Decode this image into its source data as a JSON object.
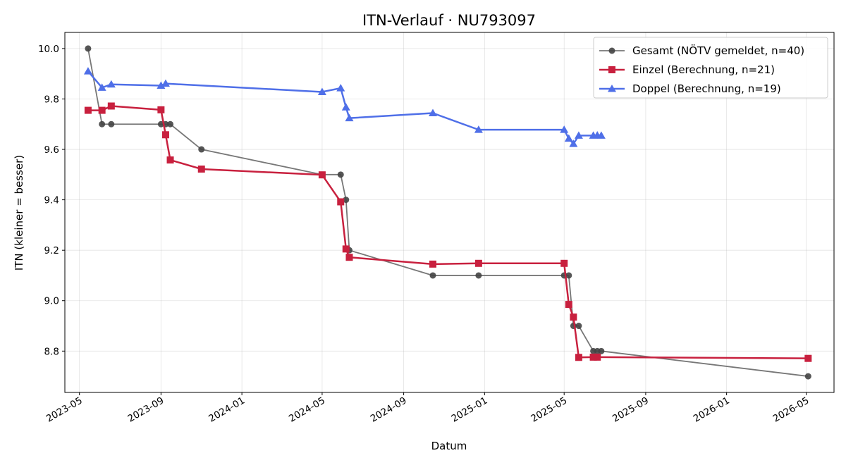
{
  "chart_data": {
    "type": "line",
    "title": "ITN-Verlauf · NU793097",
    "xlabel": "Datum",
    "ylabel": "ITN  (kleiner = besser)",
    "xlim": [
      "2023-04-09",
      "2026-06-12"
    ],
    "ylim": [
      8.636,
      10.064
    ],
    "x_ticks": [
      "2023-05",
      "2023-09",
      "2024-01",
      "2024-05",
      "2024-09",
      "2025-01",
      "2025-05",
      "2025-09",
      "2026-01",
      "2026-05"
    ],
    "y_ticks": [
      8.8,
      9.0,
      9.2,
      9.4,
      9.6,
      9.8,
      10.0
    ],
    "grid": true,
    "legend_position": "top-right",
    "series": [
      {
        "name": "Gesamt (NÖTV gemeldet, n=40)",
        "color": "#444444",
        "marker": "circle",
        "points": [
          {
            "x": "2023-05-14",
            "y": 10.0
          },
          {
            "x": "2023-06-04",
            "y": 9.7
          },
          {
            "x": "2023-06-18",
            "y": 9.7
          },
          {
            "x": "2023-09-01",
            "y": 9.7
          },
          {
            "x": "2023-09-08",
            "y": 9.7
          },
          {
            "x": "2023-09-15",
            "y": 9.7
          },
          {
            "x": "2023-11-01",
            "y": 9.6
          },
          {
            "x": "2024-05-01",
            "y": 9.5
          },
          {
            "x": "2024-05-29",
            "y": 9.5
          },
          {
            "x": "2024-06-06",
            "y": 9.4
          },
          {
            "x": "2024-06-11",
            "y": 9.2
          },
          {
            "x": "2024-10-15",
            "y": 9.1
          },
          {
            "x": "2024-12-23",
            "y": 9.1
          },
          {
            "x": "2025-05-01",
            "y": 9.1
          },
          {
            "x": "2025-05-08",
            "y": 9.1
          },
          {
            "x": "2025-05-15",
            "y": 8.9
          },
          {
            "x": "2025-05-23",
            "y": 8.9
          },
          {
            "x": "2025-06-14",
            "y": 8.8
          },
          {
            "x": "2025-06-20",
            "y": 8.8
          },
          {
            "x": "2025-06-26",
            "y": 8.8
          },
          {
            "x": "2026-05-04",
            "y": 8.7
          }
        ]
      },
      {
        "name": "Einzel (Berechnung, n=21)",
        "color": "#c8203e",
        "marker": "square",
        "points": [
          {
            "x": "2023-05-14",
            "y": 9.755
          },
          {
            "x": "2023-06-04",
            "y": 9.755
          },
          {
            "x": "2023-06-18",
            "y": 9.772
          },
          {
            "x": "2023-09-01",
            "y": 9.757
          },
          {
            "x": "2023-09-08",
            "y": 9.658
          },
          {
            "x": "2023-09-15",
            "y": 9.558
          },
          {
            "x": "2023-11-01",
            "y": 9.522
          },
          {
            "x": "2024-05-01",
            "y": 9.499
          },
          {
            "x": "2024-05-29",
            "y": 9.392
          },
          {
            "x": "2024-06-06",
            "y": 9.205
          },
          {
            "x": "2024-06-11",
            "y": 9.172
          },
          {
            "x": "2024-10-15",
            "y": 9.145
          },
          {
            "x": "2024-12-23",
            "y": 9.148
          },
          {
            "x": "2025-05-01",
            "y": 9.148
          },
          {
            "x": "2025-05-08",
            "y": 8.985
          },
          {
            "x": "2025-05-15",
            "y": 8.935
          },
          {
            "x": "2025-05-23",
            "y": 8.775
          },
          {
            "x": "2025-06-14",
            "y": 8.776
          },
          {
            "x": "2025-06-20",
            "y": 8.776
          },
          {
            "x": "2026-05-04",
            "y": 8.771
          }
        ]
      },
      {
        "name": "Doppel (Berechnung, n=19)",
        "color": "#4f6fe8",
        "marker": "triangle",
        "points": [
          {
            "x": "2023-05-14",
            "y": 9.91
          },
          {
            "x": "2023-06-04",
            "y": 9.845
          },
          {
            "x": "2023-06-18",
            "y": 9.858
          },
          {
            "x": "2023-09-01",
            "y": 9.853
          },
          {
            "x": "2023-09-08",
            "y": 9.861
          },
          {
            "x": "2024-05-01",
            "y": 9.828
          },
          {
            "x": "2024-05-29",
            "y": 9.843
          },
          {
            "x": "2024-06-06",
            "y": 9.767
          },
          {
            "x": "2024-06-11",
            "y": 9.724
          },
          {
            "x": "2024-10-15",
            "y": 9.744
          },
          {
            "x": "2024-12-23",
            "y": 9.678
          },
          {
            "x": "2025-05-01",
            "y": 9.678
          },
          {
            "x": "2025-05-08",
            "y": 9.643
          },
          {
            "x": "2025-05-15",
            "y": 9.622
          },
          {
            "x": "2025-05-23",
            "y": 9.655
          },
          {
            "x": "2025-06-14",
            "y": 9.655
          },
          {
            "x": "2025-06-20",
            "y": 9.656
          },
          {
            "x": "2025-06-26",
            "y": 9.655
          }
        ]
      }
    ]
  }
}
